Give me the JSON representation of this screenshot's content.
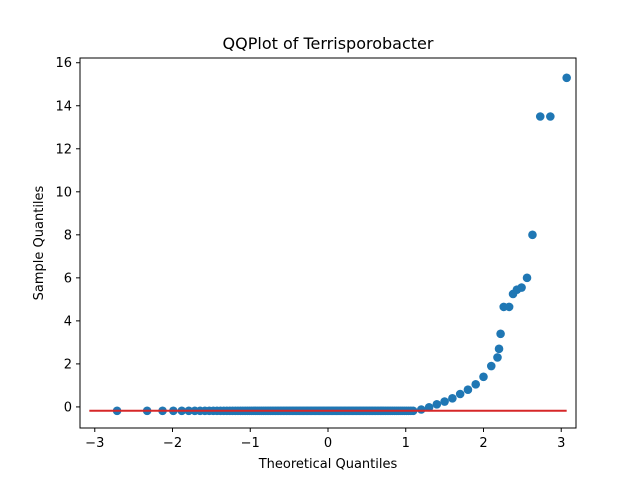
{
  "chart_data": {
    "type": "scatter",
    "title": "QQPlot of Terrisporobacter",
    "xlabel": "Theoretical Quantiles",
    "ylabel": "Sample Quantiles",
    "xlim": [
      -3.19,
      3.19
    ],
    "ylim": [
      -0.98,
      16.22
    ],
    "xticks": [
      -3,
      -2,
      -1,
      0,
      1,
      2,
      3
    ],
    "xtick_labels": [
      "−3",
      "−2",
      "−1",
      "0",
      "1",
      "2",
      "3"
    ],
    "yticks": [
      0,
      2,
      4,
      6,
      8,
      10,
      12,
      14,
      16
    ],
    "ytick_labels": [
      "0",
      "2",
      "4",
      "6",
      "8",
      "10",
      "12",
      "14",
      "16"
    ],
    "grid": false,
    "colors": {
      "points": "#1f77b4",
      "reference_line": "#d62728"
    },
    "n_points": 150,
    "points_summary": {
      "baseline_value": -0.18,
      "baseline_x_range": [
        -3.07,
        1.12
      ],
      "tail": [
        {
          "x": 1.2,
          "y": -0.12
        },
        {
          "x": 1.3,
          "y": -0.02
        },
        {
          "x": 1.4,
          "y": 0.12
        },
        {
          "x": 1.5,
          "y": 0.25
        },
        {
          "x": 1.6,
          "y": 0.4
        },
        {
          "x": 1.7,
          "y": 0.6
        },
        {
          "x": 1.8,
          "y": 0.8
        },
        {
          "x": 1.9,
          "y": 1.05
        },
        {
          "x": 2.0,
          "y": 1.4
        },
        {
          "x": 2.1,
          "y": 1.9
        },
        {
          "x": 2.18,
          "y": 2.3
        },
        {
          "x": 2.2,
          "y": 2.7
        },
        {
          "x": 2.22,
          "y": 3.4
        },
        {
          "x": 2.26,
          "y": 4.65
        },
        {
          "x": 2.33,
          "y": 4.65
        },
        {
          "x": 2.38,
          "y": 5.25
        },
        {
          "x": 2.43,
          "y": 5.45
        },
        {
          "x": 2.49,
          "y": 5.55
        },
        {
          "x": 2.56,
          "y": 6.0
        },
        {
          "x": 2.63,
          "y": 8.0
        },
        {
          "x": 2.73,
          "y": 13.5
        },
        {
          "x": 2.86,
          "y": 13.5
        },
        {
          "x": 3.07,
          "y": 15.3
        }
      ]
    },
    "reference_line": {
      "x": [
        -3.07,
        3.07
      ],
      "y": [
        -0.18,
        -0.18
      ]
    }
  }
}
